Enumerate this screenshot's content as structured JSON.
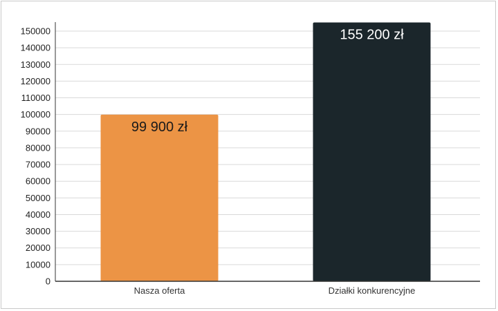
{
  "chart_data": {
    "type": "bar",
    "categories": [
      "Nasza oferta",
      "Działki konkurencyjne"
    ],
    "values": [
      99900,
      155200
    ],
    "data_labels": [
      "99 900 zł",
      "155 200 zł"
    ],
    "colors": [
      "#EC9445",
      "#1B262B"
    ],
    "label_colors": [
      "#1a1a1a",
      "#ffffff"
    ],
    "ylim": [
      0,
      155000
    ],
    "yticks": [
      0,
      10000,
      20000,
      30000,
      40000,
      50000,
      60000,
      70000,
      80000,
      90000,
      100000,
      110000,
      120000,
      130000,
      140000,
      150000
    ],
    "grid": true,
    "title": "",
    "xlabel": "",
    "ylabel": ""
  }
}
